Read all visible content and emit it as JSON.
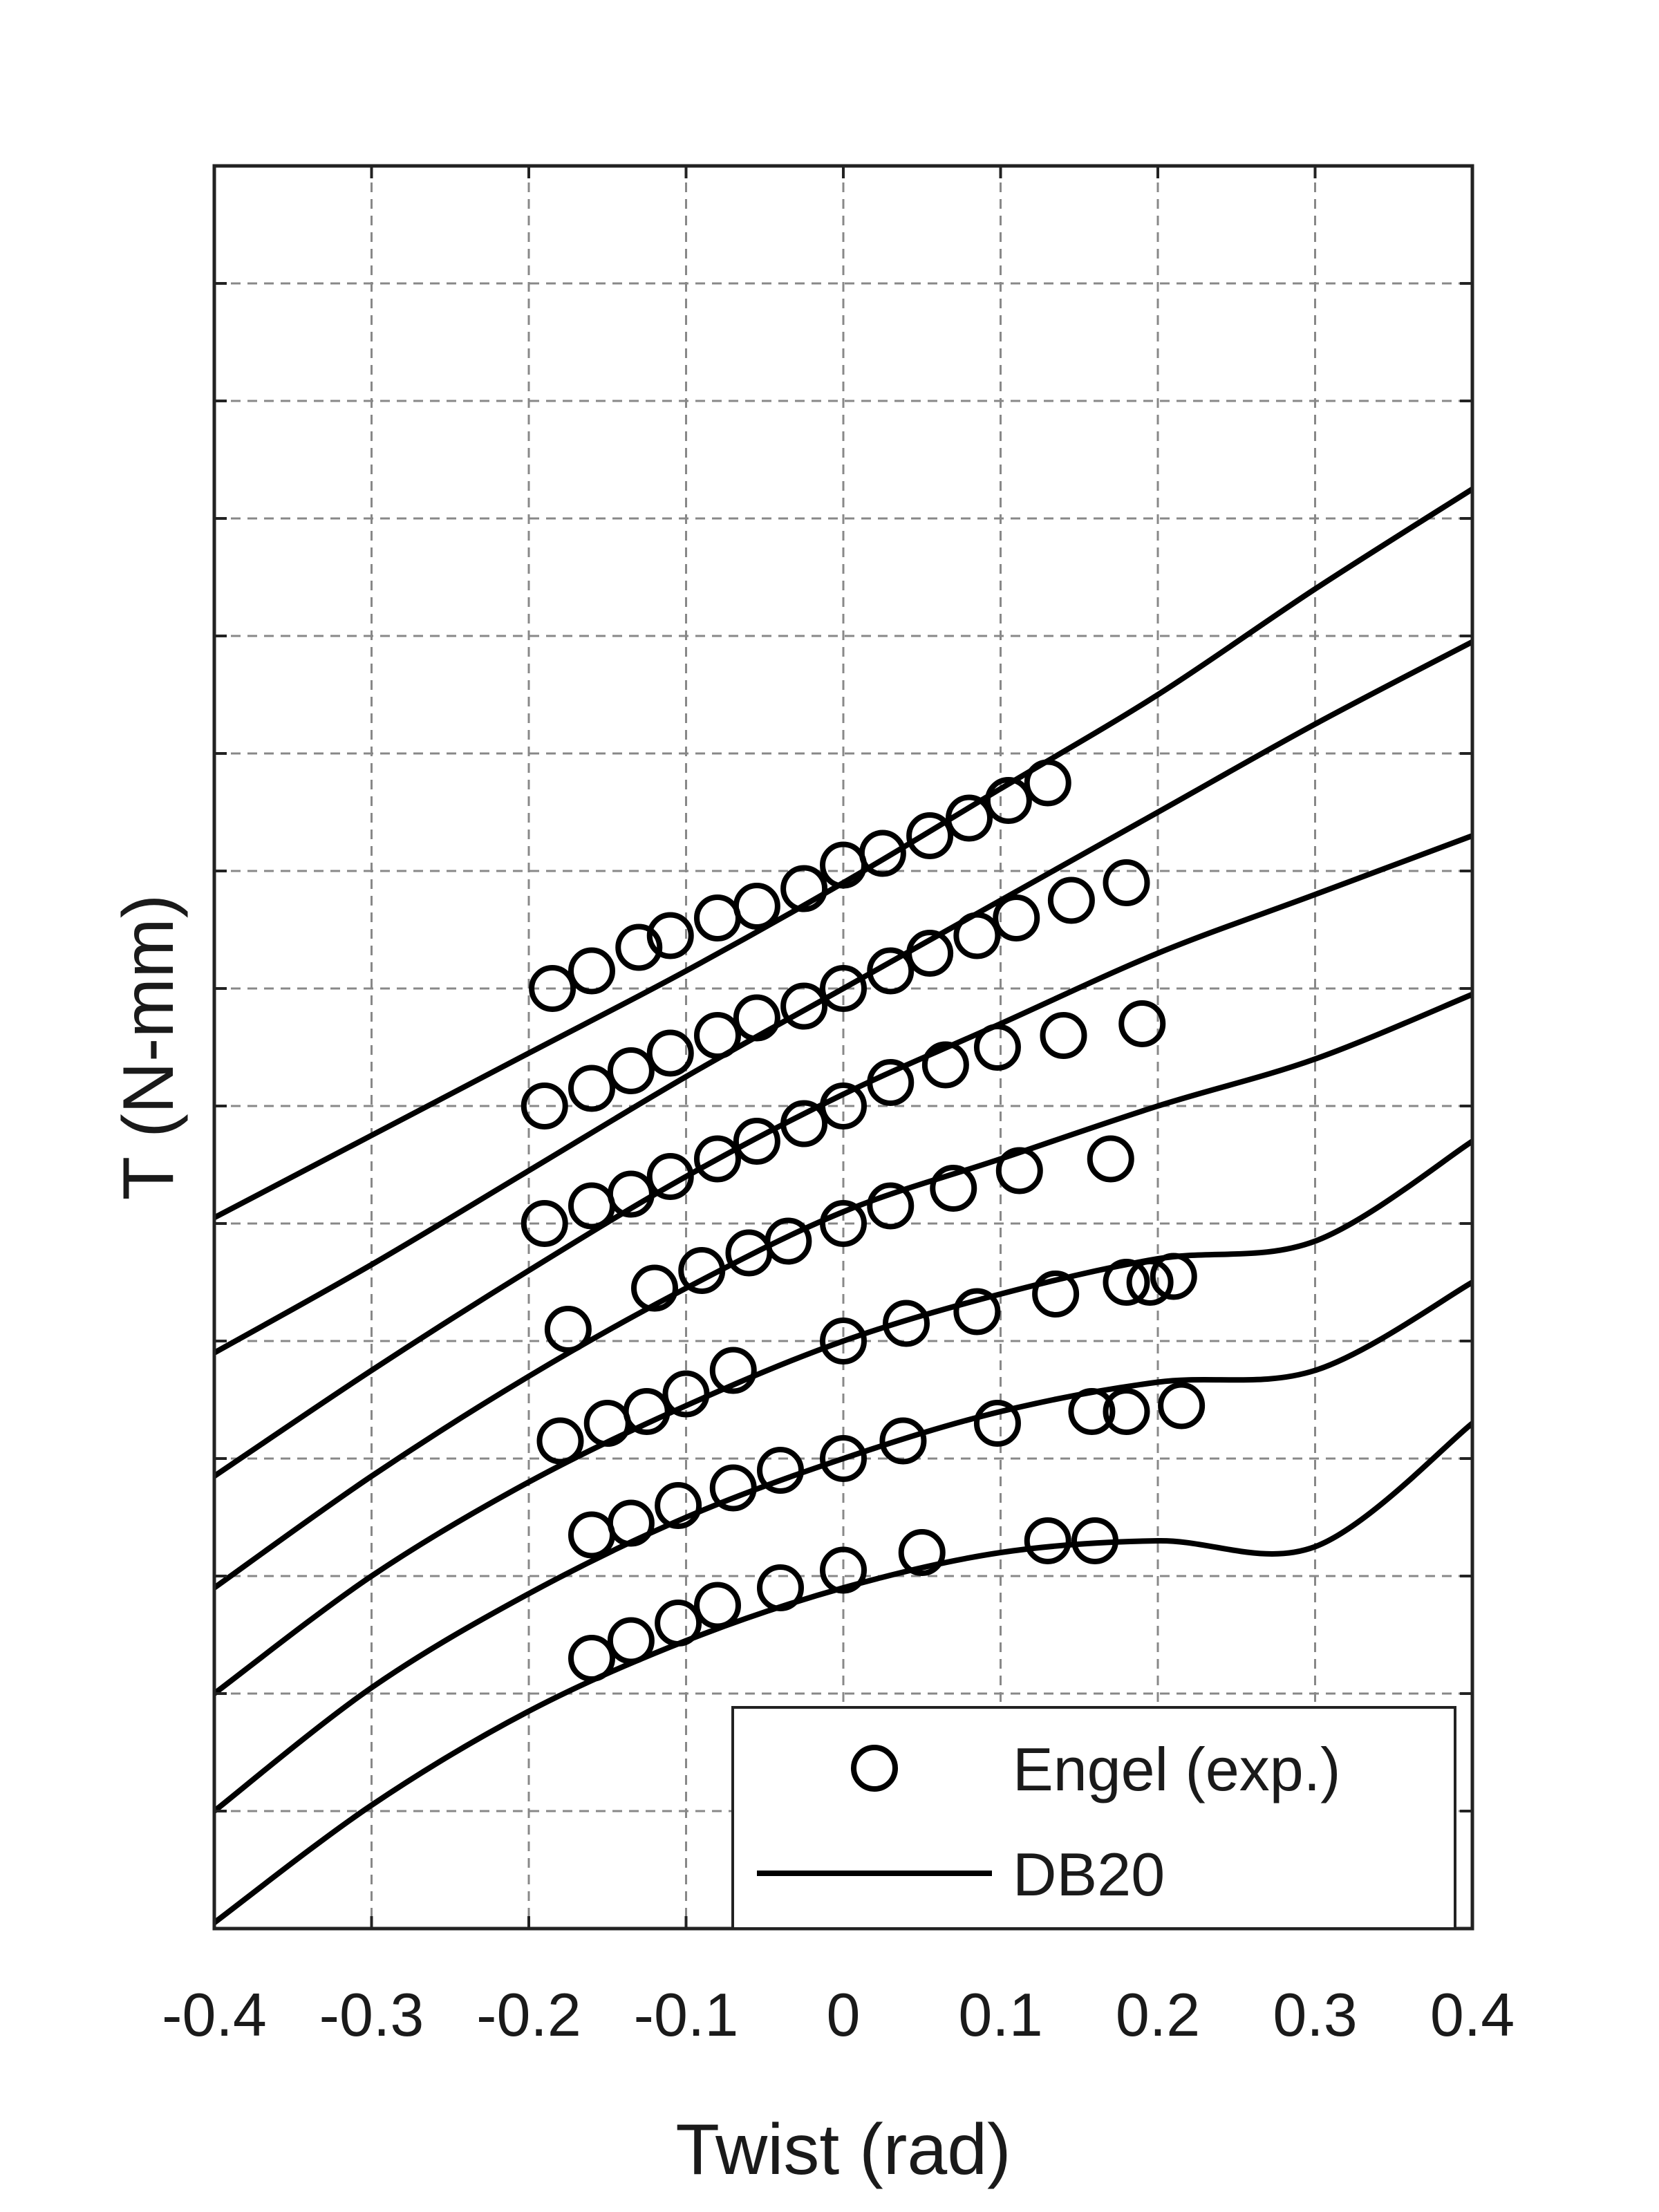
{
  "chart_data": {
    "type": "line",
    "xlabel": "Twist (rad)",
    "ylabel": "T (N-mm)",
    "xlim": [
      -0.4,
      0.4
    ],
    "ylim": [
      -16,
      14
    ],
    "xticks": [
      -0.4,
      -0.3,
      -0.2,
      -0.1,
      0,
      0.1,
      0.2,
      0.3,
      0.4
    ],
    "xtick_labels": [
      "-0.4",
      "-0.3",
      "-0.2",
      "-0.1",
      "0",
      "0.1",
      "0.2",
      "0.3",
      "0.4"
    ],
    "yticks": [
      -14,
      -12,
      -10,
      -8,
      -6,
      -4,
      -2,
      0,
      2,
      4,
      6,
      8,
      10,
      12
    ],
    "ytick_labels_shown": false,
    "grid": true,
    "legend": {
      "placement": "bottom-right",
      "entries": [
        {
          "label": "Engel (exp.)",
          "marker": "circle"
        },
        {
          "label": "DB20",
          "marker": "line"
        }
      ]
    },
    "colors": {
      "ink": "#000000",
      "grid": "#888888",
      "frame": "#222222"
    },
    "model_curves": [
      {
        "x": [
          -0.4,
          -0.3,
          -0.2,
          -0.1,
          0,
          0.1,
          0.2,
          0.3,
          0.4
        ],
        "y": [
          -3.9,
          -2.5,
          -1.1,
          0.3,
          1.8,
          3.4,
          5.0,
          6.8,
          8.5
        ]
      },
      {
        "x": [
          -0.4,
          -0.3,
          -0.2,
          -0.1,
          0,
          0.1,
          0.2,
          0.3,
          0.4
        ],
        "y": [
          -6.2,
          -4.7,
          -3.1,
          -1.5,
          0.0,
          1.5,
          3.0,
          4.5,
          5.9
        ]
      },
      {
        "x": [
          -0.4,
          -0.3,
          -0.2,
          -0.1,
          0,
          0.1,
          0.2,
          0.3,
          0.4
        ],
        "y": [
          -8.3,
          -6.5,
          -4.8,
          -3.2,
          -1.8,
          -0.6,
          0.6,
          1.6,
          2.6
        ]
      },
      {
        "x": [
          -0.4,
          -0.3,
          -0.2,
          -0.1,
          0,
          0.1,
          0.2,
          0.3,
          0.4
        ],
        "y": [
          -10.2,
          -8.3,
          -6.6,
          -5.1,
          -3.8,
          -2.9,
          -2.0,
          -1.2,
          -0.1
        ]
      },
      {
        "x": [
          -0.4,
          -0.3,
          -0.2,
          -0.1,
          0,
          0.1,
          0.2,
          0.3,
          0.4
        ],
        "y": [
          -12.0,
          -10.0,
          -8.4,
          -7.1,
          -6.0,
          -5.2,
          -4.6,
          -4.3,
          -2.6
        ]
      },
      {
        "x": [
          -0.4,
          -0.3,
          -0.2,
          -0.1,
          0,
          0.1,
          0.2,
          0.3,
          0.4
        ],
        "y": [
          -14.0,
          -11.9,
          -10.3,
          -9.0,
          -8.0,
          -7.2,
          -6.7,
          -6.5,
          -5.0
        ]
      },
      {
        "x": [
          -0.4,
          -0.3,
          -0.2,
          -0.1,
          0,
          0.1,
          0.2,
          0.3,
          0.4
        ],
        "y": [
          -15.9,
          -13.9,
          -12.3,
          -11.1,
          -10.2,
          -9.6,
          -9.4,
          -9.5,
          -7.4
        ]
      }
    ],
    "experimental_points": [
      {
        "x": [
          -0.185,
          -0.16,
          -0.13,
          -0.11,
          -0.08,
          -0.055,
          -0.025,
          0.0,
          0.025,
          0.055,
          0.08,
          0.105,
          0.13
        ],
        "y": [
          0.0,
          0.3,
          0.7,
          0.9,
          1.2,
          1.4,
          1.7,
          2.1,
          2.3,
          2.6,
          2.9,
          3.2,
          3.5
        ]
      },
      {
        "x": [
          -0.19,
          -0.16,
          -0.135,
          -0.11,
          -0.08,
          -0.055,
          -0.025,
          0.0,
          0.03,
          0.055,
          0.085,
          0.11,
          0.145,
          0.18
        ],
        "y": [
          -2.0,
          -1.7,
          -1.4,
          -1.1,
          -0.8,
          -0.5,
          -0.3,
          0.0,
          0.3,
          0.6,
          0.9,
          1.2,
          1.5,
          1.8
        ]
      },
      {
        "x": [
          -0.19,
          -0.16,
          -0.135,
          -0.11,
          -0.08,
          -0.055,
          -0.025,
          0.0,
          0.03,
          0.065,
          0.098,
          0.14,
          0.19
        ],
        "y": [
          -4.0,
          -3.7,
          -3.5,
          -3.2,
          -2.9,
          -2.6,
          -2.3,
          -2.0,
          -1.6,
          -1.3,
          -1.0,
          -0.8,
          -0.6
        ]
      },
      {
        "x": [
          -0.175,
          -0.12,
          -0.09,
          -0.06,
          -0.035,
          0.0,
          0.03,
          0.07,
          0.112,
          0.17
        ],
        "y": [
          -5.8,
          -5.1,
          -4.8,
          -4.5,
          -4.3,
          -4.0,
          -3.7,
          -3.4,
          -3.1,
          -2.9
        ]
      },
      {
        "x": [
          -0.18,
          -0.15,
          -0.125,
          -0.1,
          -0.07,
          0.0,
          0.04,
          0.085,
          0.135,
          0.18,
          0.195,
          0.21
        ],
        "y": [
          -7.7,
          -7.4,
          -7.2,
          -6.9,
          -6.5,
          -6.0,
          -5.7,
          -5.5,
          -5.2,
          -5.0,
          -5.0,
          -4.9
        ]
      },
      {
        "x": [
          -0.16,
          -0.135,
          -0.105,
          -0.07,
          -0.04,
          0.0,
          0.038,
          0.098,
          0.158,
          0.18,
          0.215
        ],
        "y": [
          -9.3,
          -9.1,
          -8.8,
          -8.5,
          -8.2,
          -8.0,
          -7.7,
          -7.4,
          -7.2,
          -7.2,
          -7.1
        ]
      },
      {
        "x": [
          -0.16,
          -0.135,
          -0.105,
          -0.08,
          -0.04,
          0.0,
          0.05,
          0.13,
          0.16
        ],
        "y": [
          -11.4,
          -11.1,
          -10.8,
          -10.5,
          -10.2,
          -9.9,
          -9.6,
          -9.4,
          -9.4
        ]
      }
    ]
  }
}
